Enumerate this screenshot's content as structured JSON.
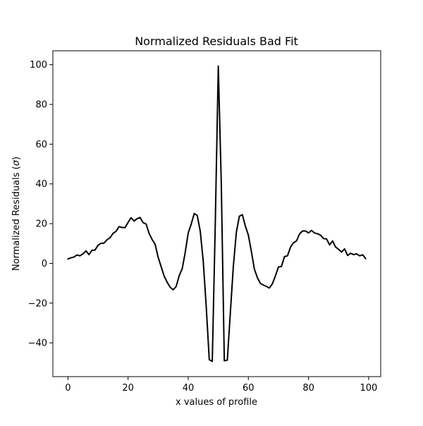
{
  "chart_data": {
    "type": "line",
    "title": "Normalized Residuals Bad Fit",
    "xlabel": "x values of profile",
    "ylabel_prefix": "Normalized Residuals (",
    "ylabel_symbol": "σ",
    "ylabel_suffix": ")",
    "xlim": [
      -5,
      104
    ],
    "ylim": [
      -57,
      107
    ],
    "xticks": [
      0,
      20,
      40,
      60,
      80,
      100
    ],
    "yticks": [
      -40,
      -20,
      0,
      20,
      40,
      60,
      80,
      100
    ],
    "grid": false,
    "legend": "none",
    "line_color": "#000000",
    "series": [
      {
        "x": [
          0,
          1,
          2,
          3,
          4,
          5,
          6,
          7,
          8,
          9,
          10,
          11,
          12,
          13,
          14,
          15,
          16,
          17,
          18,
          19,
          20,
          21,
          22,
          23,
          24,
          25,
          26,
          27,
          28,
          29,
          30,
          31,
          32,
          33,
          34,
          35,
          36,
          37,
          38,
          39,
          40,
          41,
          42,
          43,
          44,
          45,
          46,
          47,
          48,
          49,
          50,
          51,
          52,
          53,
          54,
          55,
          56,
          57,
          58,
          59,
          60,
          61,
          62,
          63,
          64,
          65,
          66,
          67,
          68,
          69,
          70,
          71,
          72,
          73,
          74,
          75,
          76,
          77,
          78,
          79,
          80,
          81,
          82,
          83,
          84,
          85,
          86,
          87,
          88,
          89,
          90,
          91,
          92,
          93,
          94,
          95,
          96,
          97,
          98,
          99
        ],
        "y": [
          2.2,
          2.8,
          3.2,
          4.2,
          3.8,
          4.8,
          6.3,
          4.4,
          6.6,
          6.7,
          9.1,
          10.1,
          10.2,
          11.9,
          12.9,
          15.1,
          16.1,
          18.5,
          18.1,
          18.0,
          20.6,
          23.0,
          21.3,
          22.5,
          23.1,
          20.5,
          19.8,
          15.1,
          12.0,
          9.6,
          3.1,
          -1.7,
          -6.4,
          -9.5,
          -12.0,
          -13.3,
          -11.6,
          -6.2,
          -2.7,
          5.5,
          15.3,
          19.8,
          25.1,
          24.1,
          16.2,
          1.0,
          -22.0,
          -48.5,
          -49.3,
          20.0,
          99.3,
          40.0,
          -49.0,
          -48.7,
          -25.0,
          -1.6,
          15.6,
          23.7,
          24.5,
          18.8,
          14.2,
          6.0,
          -2.9,
          -7.2,
          -10.1,
          -10.9,
          -11.6,
          -12.4,
          -10.2,
          -6.3,
          -1.8,
          -1.6,
          3.4,
          3.8,
          8.1,
          10.4,
          11.3,
          14.8,
          16.3,
          16.3,
          15.3,
          16.6,
          15.3,
          14.9,
          14.2,
          12.5,
          12.3,
          9.3,
          11.3,
          8.2,
          7.1,
          5.7,
          7.3,
          4.0,
          5.1,
          4.4,
          4.8,
          3.8,
          4.3,
          2.4
        ]
      }
    ]
  }
}
